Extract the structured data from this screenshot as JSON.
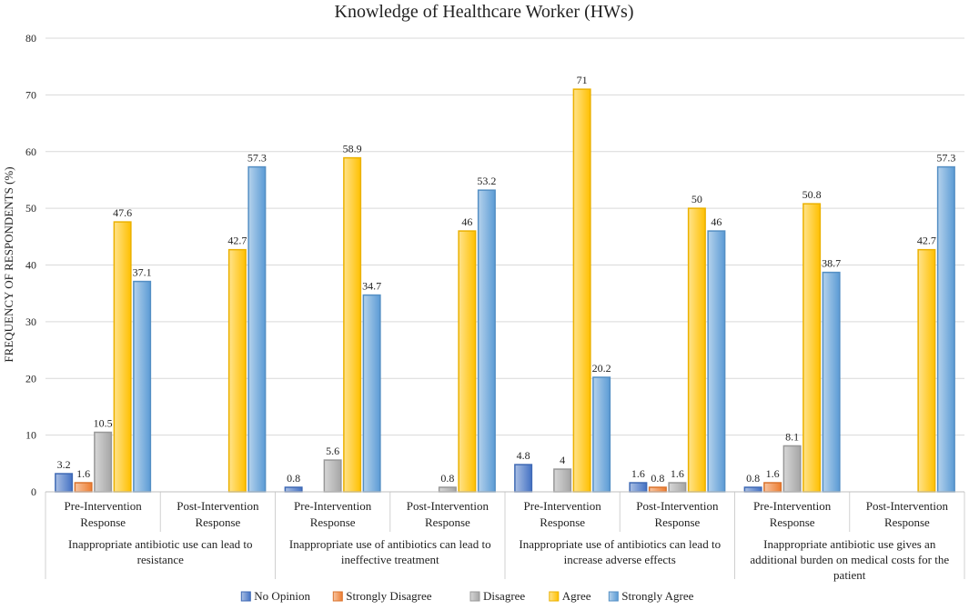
{
  "chart_data": {
    "type": "bar",
    "title": "Knowledge of Healthcare Worker (HWs)",
    "ylabel": "FREQUENCY OF RESPONDENTS (%)",
    "xlabel": "",
    "ylim": [
      0,
      80
    ],
    "yticks": [
      0,
      10,
      20,
      30,
      40,
      50,
      60,
      70,
      80
    ],
    "grid": true,
    "legend_position": "bottom",
    "groups": [
      {
        "label_lines": [
          "Inappropriate antibiotic use can lead to",
          "resistance"
        ],
        "subgroups": [
          {
            "label_lines": [
              "Pre-Intervention",
              "Response"
            ],
            "values": [
              3.2,
              1.6,
              10.5,
              47.6,
              37.1
            ]
          },
          {
            "label_lines": [
              "Post-Intervention",
              "Response"
            ],
            "values": [
              null,
              null,
              null,
              42.7,
              57.3
            ]
          }
        ]
      },
      {
        "label_lines": [
          "Inappropriate use of antibiotics can lead to",
          "ineffective treatment"
        ],
        "subgroups": [
          {
            "label_lines": [
              "Pre-Intervention",
              "Response"
            ],
            "values": [
              0.8,
              null,
              5.6,
              58.9,
              34.7
            ]
          },
          {
            "label_lines": [
              "Post-Intervention",
              "Response"
            ],
            "values": [
              null,
              null,
              0.8,
              46,
              53.2
            ]
          }
        ]
      },
      {
        "label_lines": [
          "Inappropriate use of antibiotics can lead to",
          "increase adverse effects"
        ],
        "subgroups": [
          {
            "label_lines": [
              "Pre-Intervention",
              "Response"
            ],
            "values": [
              4.8,
              null,
              4,
              71,
              20.2
            ]
          },
          {
            "label_lines": [
              "Post-Intervention",
              "Response"
            ],
            "values": [
              1.6,
              0.8,
              1.6,
              50,
              46
            ]
          }
        ]
      },
      {
        "label_lines": [
          "Inappropriate antibiotic use gives an",
          "additional burden on medical costs for the",
          "patient"
        ],
        "subgroups": [
          {
            "label_lines": [
              "Pre-Intervention",
              "Response"
            ],
            "values": [
              0.8,
              1.6,
              8.1,
              50.8,
              38.7
            ]
          },
          {
            "label_lines": [
              "Post-Intervention",
              "Response"
            ],
            "values": [
              null,
              null,
              null,
              42.7,
              57.3
            ]
          }
        ]
      }
    ],
    "series": [
      {
        "name": "No Opinion",
        "color": "#4472C4"
      },
      {
        "name": "Strongly Disagree",
        "color": "#ED7D31"
      },
      {
        "name": "Disagree",
        "color": "#A5A5A5"
      },
      {
        "name": "Agree",
        "color": "#FFC000"
      },
      {
        "name": "Strongly Agree",
        "color": "#5B9BD5"
      }
    ]
  }
}
